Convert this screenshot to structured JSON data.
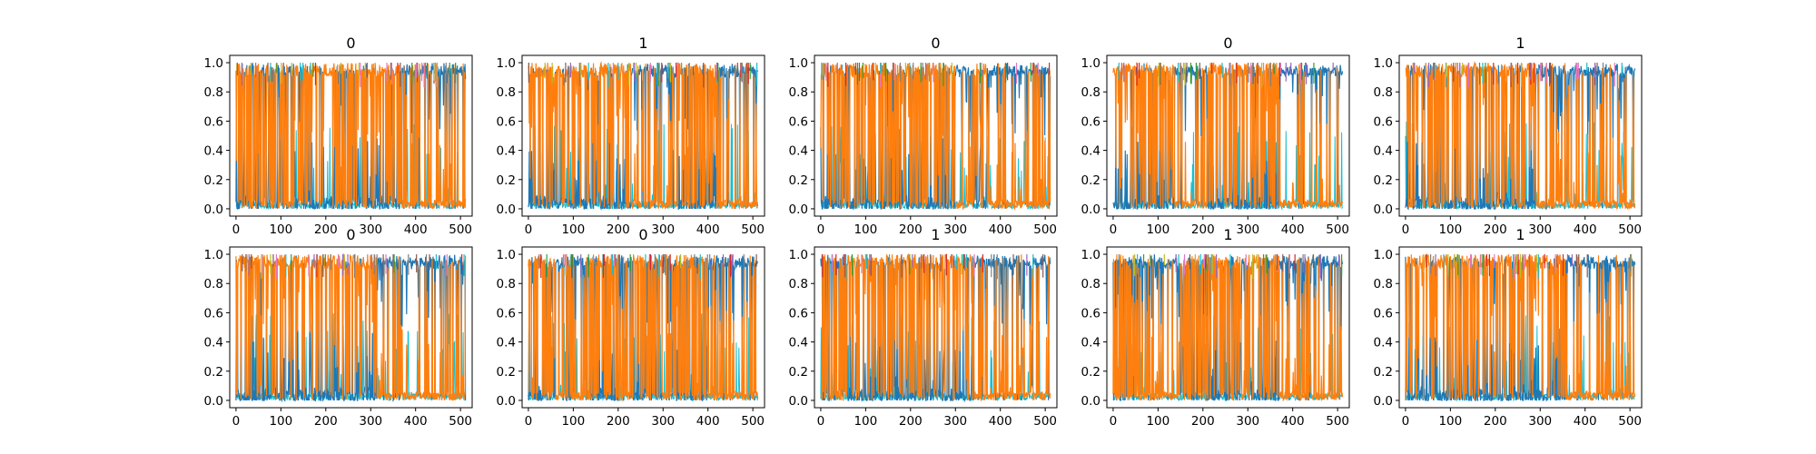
{
  "chart_data": [
    {
      "type": "line",
      "title": "0",
      "xlim": [
        -14,
        526
      ],
      "ylim": [
        -0.05,
        1.05
      ],
      "xticks": [
        0,
        100,
        200,
        300,
        400,
        500
      ],
      "yticks": [
        0.0,
        0.2,
        0.4,
        0.6,
        0.8,
        1.0
      ],
      "xtick_labels": [
        "0",
        "100",
        "200",
        "300",
        "400",
        "500"
      ],
      "ytick_labels": [
        "0.0",
        "0.2",
        "0.4",
        "0.6",
        "0.8",
        "1.0"
      ],
      "n_points": 512,
      "series": [
        {
          "color": "#ff7f0e",
          "regions": [
            [
              0,
              30,
              0.8
            ],
            [
              30,
              130,
              0.45
            ],
            [
              130,
              270,
              0.7
            ],
            [
              270,
              330,
              0.85
            ],
            [
              330,
              370,
              0.7
            ],
            [
              370,
              512,
              0.08
            ]
          ]
        },
        {
          "color": "#1f77b4",
          "regions": [
            [
              0,
              30,
              0.2
            ],
            [
              30,
              130,
              0.5
            ],
            [
              130,
              270,
              0.28
            ],
            [
              270,
              330,
              0.12
            ],
            [
              330,
              370,
              0.28
            ],
            [
              370,
              512,
              0.9
            ]
          ]
        }
      ]
    },
    {
      "type": "line",
      "title": "1",
      "xlim": [
        -14,
        526
      ],
      "ylim": [
        -0.05,
        1.05
      ],
      "xticks": [
        0,
        100,
        200,
        300,
        400,
        500
      ],
      "yticks": [
        0.0,
        0.2,
        0.4,
        0.6,
        0.8,
        1.0
      ],
      "xtick_labels": [
        "0",
        "100",
        "200",
        "300",
        "400",
        "500"
      ],
      "ytick_labels": [
        "0.0",
        "0.2",
        "0.4",
        "0.6",
        "0.8",
        "1.0"
      ],
      "n_points": 512,
      "series": [
        {
          "color": "#ff7f0e",
          "regions": [
            [
              0,
              40,
              0.8
            ],
            [
              40,
              230,
              0.75
            ],
            [
              230,
              330,
              0.08
            ],
            [
              330,
              420,
              0.6
            ],
            [
              420,
              512,
              0.08
            ]
          ]
        },
        {
          "color": "#1f77b4",
          "regions": [
            [
              0,
              40,
              0.2
            ],
            [
              40,
              230,
              0.25
            ],
            [
              230,
              330,
              0.9
            ],
            [
              330,
              420,
              0.4
            ],
            [
              420,
              512,
              0.9
            ]
          ]
        }
      ]
    },
    {
      "type": "line",
      "title": "0",
      "xlim": [
        -14,
        526
      ],
      "ylim": [
        -0.05,
        1.05
      ],
      "xticks": [
        0,
        100,
        200,
        300,
        400,
        500
      ],
      "yticks": [
        0.0,
        0.2,
        0.4,
        0.6,
        0.8,
        1.0
      ],
      "xtick_labels": [
        "0",
        "100",
        "200",
        "300",
        "400",
        "500"
      ],
      "ytick_labels": [
        "0.0",
        "0.2",
        "0.4",
        "0.6",
        "0.8",
        "1.0"
      ],
      "n_points": 512,
      "series": [
        {
          "color": "#ff7f0e",
          "regions": [
            [
              0,
              40,
              0.85
            ],
            [
              40,
              300,
              0.65
            ],
            [
              300,
              340,
              0.1
            ],
            [
              340,
              370,
              0.85
            ],
            [
              370,
              512,
              0.08
            ]
          ]
        },
        {
          "color": "#1f77b4",
          "regions": [
            [
              0,
              40,
              0.15
            ],
            [
              40,
              300,
              0.35
            ],
            [
              300,
              340,
              0.9
            ],
            [
              340,
              370,
              0.15
            ],
            [
              370,
              512,
              0.9
            ]
          ]
        }
      ]
    },
    {
      "type": "line",
      "title": "0",
      "xlim": [
        -14,
        526
      ],
      "ylim": [
        -0.05,
        1.05
      ],
      "xticks": [
        0,
        100,
        200,
        300,
        400,
        500
      ],
      "yticks": [
        0.0,
        0.2,
        0.4,
        0.6,
        0.8,
        1.0
      ],
      "xtick_labels": [
        "0",
        "100",
        "200",
        "300",
        "400",
        "500"
      ],
      "ytick_labels": [
        "0.0",
        "0.2",
        "0.4",
        "0.6",
        "0.8",
        "1.0"
      ],
      "n_points": 512,
      "series": [
        {
          "color": "#ff7f0e",
          "regions": [
            [
              0,
              140,
              0.75
            ],
            [
              140,
              210,
              0.1
            ],
            [
              210,
              370,
              0.75
            ],
            [
              370,
              512,
              0.08
            ]
          ]
        },
        {
          "color": "#1f77b4",
          "regions": [
            [
              0,
              140,
              0.25
            ],
            [
              140,
              210,
              0.9
            ],
            [
              210,
              370,
              0.25
            ],
            [
              370,
              512,
              0.9
            ]
          ]
        }
      ]
    },
    {
      "type": "line",
      "title": "1",
      "xlim": [
        -14,
        526
      ],
      "ylim": [
        -0.05,
        1.05
      ],
      "xticks": [
        0,
        100,
        200,
        300,
        400,
        500
      ],
      "yticks": [
        0.0,
        0.2,
        0.4,
        0.6,
        0.8,
        1.0
      ],
      "xtick_labels": [
        "0",
        "100",
        "200",
        "300",
        "400",
        "500"
      ],
      "ytick_labels": [
        "0.0",
        "0.2",
        "0.4",
        "0.6",
        "0.8",
        "1.0"
      ],
      "n_points": 512,
      "series": [
        {
          "color": "#ff7f0e",
          "regions": [
            [
              0,
              40,
              0.75
            ],
            [
              40,
              290,
              0.7
            ],
            [
              290,
              512,
              0.07
            ]
          ]
        },
        {
          "color": "#1f77b4",
          "regions": [
            [
              0,
              40,
              0.25
            ],
            [
              40,
              290,
              0.3
            ],
            [
              290,
              512,
              0.9
            ]
          ]
        }
      ]
    },
    {
      "type": "line",
      "title": "0",
      "xlim": [
        -14,
        526
      ],
      "ylim": [
        -0.05,
        1.05
      ],
      "xticks": [
        0,
        100,
        200,
        300,
        400,
        500
      ],
      "yticks": [
        0.0,
        0.2,
        0.4,
        0.6,
        0.8,
        1.0
      ],
      "xtick_labels": [
        "0",
        "100",
        "200",
        "300",
        "400",
        "500"
      ],
      "ytick_labels": [
        "0.0",
        "0.2",
        "0.4",
        "0.6",
        "0.8",
        "1.0"
      ],
      "n_points": 512,
      "series": [
        {
          "color": "#ff7f0e",
          "regions": [
            [
              0,
              310,
              0.8
            ],
            [
              310,
              512,
              0.08
            ]
          ]
        },
        {
          "color": "#1f77b4",
          "regions": [
            [
              0,
              310,
              0.2
            ],
            [
              310,
              512,
              0.9
            ]
          ]
        }
      ]
    },
    {
      "type": "line",
      "title": "0",
      "xlim": [
        -14,
        526
      ],
      "ylim": [
        -0.05,
        1.05
      ],
      "xticks": [
        0,
        100,
        200,
        300,
        400,
        500
      ],
      "yticks": [
        0.0,
        0.2,
        0.4,
        0.6,
        0.8,
        1.0
      ],
      "xtick_labels": [
        "0",
        "100",
        "200",
        "300",
        "400",
        "500"
      ],
      "ytick_labels": [
        "0.0",
        "0.2",
        "0.4",
        "0.6",
        "0.8",
        "1.0"
      ],
      "n_points": 512,
      "series": [
        {
          "color": "#ff7f0e",
          "regions": [
            [
              0,
              60,
              0.7
            ],
            [
              60,
              130,
              0.15
            ],
            [
              130,
              200,
              0.6
            ],
            [
              200,
              230,
              0.15
            ],
            [
              230,
              300,
              0.6
            ],
            [
              300,
              320,
              0.1
            ],
            [
              320,
              400,
              0.55
            ],
            [
              400,
              512,
              0.1
            ]
          ]
        },
        {
          "color": "#1f77b4",
          "regions": [
            [
              0,
              60,
              0.3
            ],
            [
              60,
              130,
              0.85
            ],
            [
              130,
              200,
              0.4
            ],
            [
              200,
              230,
              0.85
            ],
            [
              230,
              300,
              0.4
            ],
            [
              300,
              320,
              0.9
            ],
            [
              320,
              400,
              0.45
            ],
            [
              400,
              512,
              0.9
            ]
          ]
        }
      ]
    },
    {
      "type": "line",
      "title": "1",
      "xlim": [
        -14,
        526
      ],
      "ylim": [
        -0.05,
        1.05
      ],
      "xticks": [
        0,
        100,
        200,
        300,
        400,
        500
      ],
      "yticks": [
        0.0,
        0.2,
        0.4,
        0.6,
        0.8,
        1.0
      ],
      "xtick_labels": [
        "0",
        "100",
        "200",
        "300",
        "400",
        "500"
      ],
      "ytick_labels": [
        "0.0",
        "0.2",
        "0.4",
        "0.6",
        "0.8",
        "1.0"
      ],
      "n_points": 512,
      "series": [
        {
          "color": "#ff7f0e",
          "regions": [
            [
              0,
              60,
              0.6
            ],
            [
              60,
              340,
              0.75
            ],
            [
              340,
              512,
              0.08
            ]
          ]
        },
        {
          "color": "#1f77b4",
          "regions": [
            [
              0,
              60,
              0.4
            ],
            [
              60,
              340,
              0.25
            ],
            [
              340,
              512,
              0.9
            ]
          ]
        }
      ]
    },
    {
      "type": "line",
      "title": "1",
      "xlim": [
        -14,
        526
      ],
      "ylim": [
        -0.05,
        1.05
      ],
      "xticks": [
        0,
        100,
        200,
        300,
        400,
        500
      ],
      "yticks": [
        0.0,
        0.2,
        0.4,
        0.6,
        0.8,
        1.0
      ],
      "xtick_labels": [
        "0",
        "100",
        "200",
        "300",
        "400",
        "500"
      ],
      "ytick_labels": [
        "0.0",
        "0.2",
        "0.4",
        "0.6",
        "0.8",
        "1.0"
      ],
      "n_points": 512,
      "series": [
        {
          "color": "#ff7f0e",
          "regions": [
            [
              0,
              40,
              0.3
            ],
            [
              40,
              150,
              0.1
            ],
            [
              150,
              370,
              0.6
            ],
            [
              370,
              512,
              0.1
            ]
          ]
        },
        {
          "color": "#1f77b4",
          "regions": [
            [
              0,
              40,
              0.7
            ],
            [
              40,
              150,
              0.9
            ],
            [
              150,
              370,
              0.4
            ],
            [
              370,
              512,
              0.9
            ]
          ]
        }
      ]
    },
    {
      "type": "line",
      "title": "1",
      "xlim": [
        -14,
        526
      ],
      "ylim": [
        -0.05,
        1.05
      ],
      "xticks": [
        0,
        100,
        200,
        300,
        400,
        500
      ],
      "yticks": [
        0.0,
        0.2,
        0.4,
        0.6,
        0.8,
        1.0
      ],
      "xtick_labels": [
        "0",
        "100",
        "200",
        "300",
        "400",
        "500"
      ],
      "ytick_labels": [
        "0.0",
        "0.2",
        "0.4",
        "0.6",
        "0.8",
        "1.0"
      ],
      "n_points": 512,
      "series": [
        {
          "color": "#ff7f0e",
          "regions": [
            [
              0,
              350,
              0.8
            ],
            [
              350,
              512,
              0.08
            ]
          ]
        },
        {
          "color": "#1f77b4",
          "regions": [
            [
              0,
              350,
              0.2
            ],
            [
              350,
              512,
              0.9
            ]
          ]
        }
      ]
    }
  ],
  "colors": {
    "other_series": [
      "#17becf",
      "#bcbd22",
      "#2ca02c",
      "#9467bd",
      "#e377c2",
      "#d62728",
      "#8c564b",
      "#7f7f7f"
    ]
  }
}
